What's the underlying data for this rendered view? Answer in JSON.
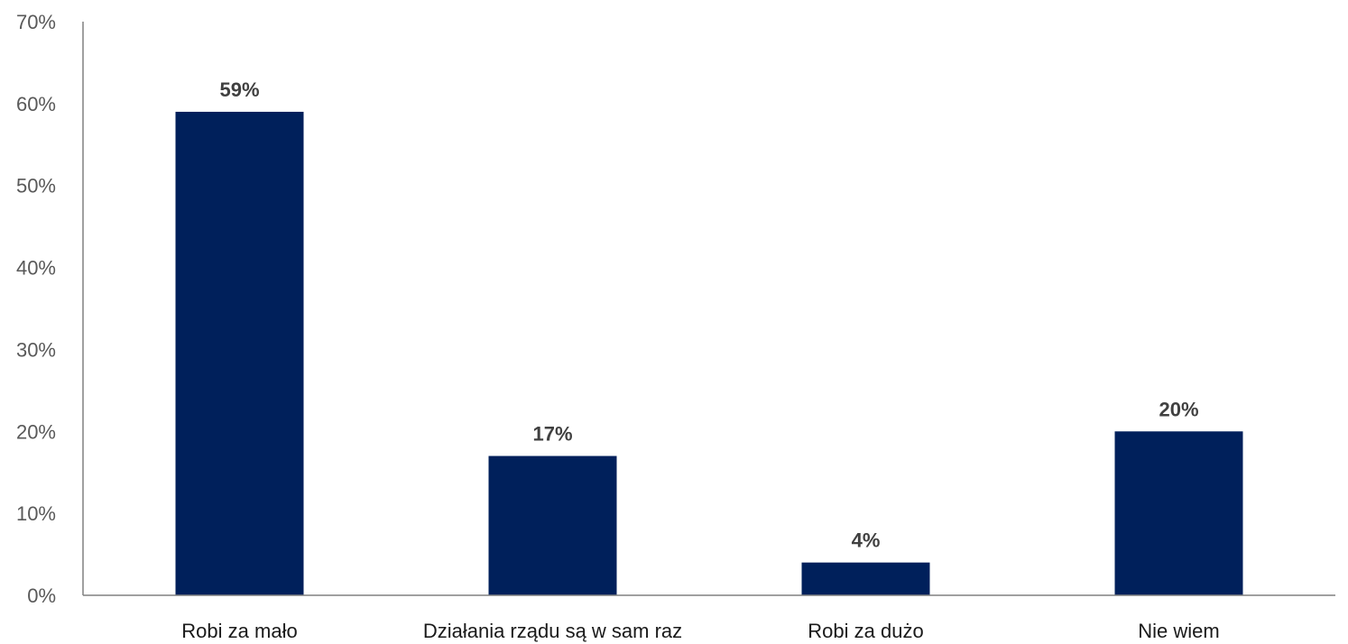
{
  "chart_data": {
    "type": "bar",
    "title": "",
    "xlabel": "",
    "ylabel": "",
    "categories": [
      "Robi za mało",
      "Działania rządu są w sam raz",
      "Robi za dużo",
      "Nie wiem"
    ],
    "values": [
      59,
      17,
      4,
      20
    ],
    "data_labels": [
      "59%",
      "17%",
      "4%",
      "20%"
    ],
    "ylim": [
      0,
      70
    ],
    "yticks": [
      0,
      10,
      20,
      30,
      40,
      50,
      60,
      70
    ],
    "ytick_labels": [
      "0%",
      "10%",
      "20%",
      "30%",
      "40%",
      "50%",
      "60%",
      "70%"
    ],
    "grid": false,
    "legend": "none",
    "colors": {
      "bar": "#00205b",
      "axis": "#808080"
    }
  }
}
